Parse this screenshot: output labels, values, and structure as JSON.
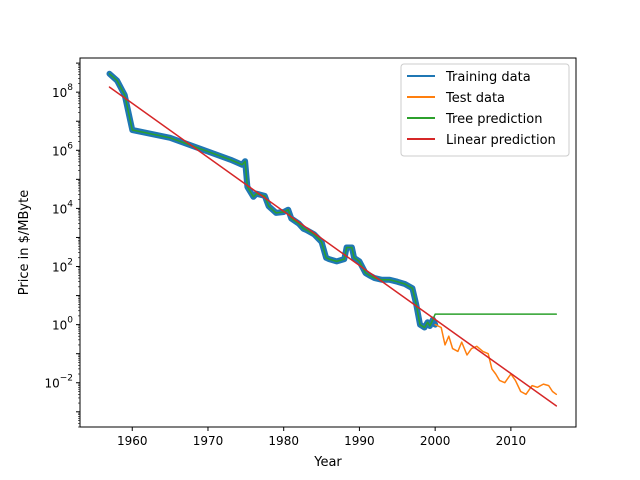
{
  "chart_data": {
    "type": "line",
    "xlabel": "Year",
    "ylabel": "Price in $/MByte",
    "xlim": [
      1953.1,
      2018.6
    ],
    "ylim": [
      0.0003,
      1500000000
    ],
    "yscale": "log",
    "grid": false,
    "legend_position": "top-right",
    "x_ticks": [
      1960,
      1970,
      1980,
      1990,
      2000,
      2010
    ],
    "y_ticks": [
      {
        "value": 0.01,
        "base": "10",
        "exp": "−2"
      },
      {
        "value": 1.0,
        "base": "10",
        "exp": "0"
      },
      {
        "value": 100.0,
        "base": "10",
        "exp": "2"
      },
      {
        "value": 10000.0,
        "base": "10",
        "exp": "4"
      },
      {
        "value": 1000000.0,
        "base": "10",
        "exp": "6"
      },
      {
        "value": 100000000.0,
        "base": "10",
        "exp": "8"
      }
    ],
    "series": [
      {
        "name": "Training data",
        "color": "#1f77b4",
        "points": [
          [
            1957,
            430000000
          ],
          [
            1958,
            250000000
          ],
          [
            1959,
            80000000
          ],
          [
            1960,
            5000000
          ],
          [
            1965,
            2700000
          ],
          [
            1970,
            900000
          ],
          [
            1973,
            470000
          ],
          [
            1974.5,
            320000
          ],
          [
            1974.9,
            420000
          ],
          [
            1975.2,
            55000
          ],
          [
            1976,
            25000
          ],
          [
            1976.4,
            32000
          ],
          [
            1977.5,
            27000
          ],
          [
            1978,
            12000
          ],
          [
            1979,
            7000
          ],
          [
            1980,
            7500
          ],
          [
            1980.6,
            9000
          ],
          [
            1981,
            4500
          ],
          [
            1982,
            3000
          ],
          [
            1982.6,
            2000
          ],
          [
            1983,
            1800
          ],
          [
            1984,
            1300
          ],
          [
            1985,
            700
          ],
          [
            1985.6,
            200
          ],
          [
            1986,
            180
          ],
          [
            1987,
            150
          ],
          [
            1988,
            180
          ],
          [
            1988.3,
            450
          ],
          [
            1989,
            450
          ],
          [
            1989.3,
            200
          ],
          [
            1990,
            150
          ],
          [
            1990.8,
            60
          ],
          [
            1991.3,
            50
          ],
          [
            1992,
            40
          ],
          [
            1993,
            35
          ],
          [
            1994,
            35
          ],
          [
            1995,
            30
          ],
          [
            1996,
            25
          ],
          [
            1997,
            18
          ],
          [
            1997.5,
            5
          ],
          [
            1998,
            1.0
          ],
          [
            1998.6,
            0.8
          ],
          [
            1999,
            1.2
          ],
          [
            1999.3,
            0.9
          ],
          [
            1999.7,
            1.5
          ],
          [
            2000,
            1.0
          ]
        ]
      },
      {
        "name": "Test data",
        "color": "#ff7f0e",
        "points": [
          [
            2000,
            1.0
          ],
          [
            2000.8,
            0.8
          ],
          [
            2001.3,
            0.2
          ],
          [
            2001.8,
            0.4
          ],
          [
            2002.3,
            0.15
          ],
          [
            2003,
            0.12
          ],
          [
            2003.5,
            0.25
          ],
          [
            2004.2,
            0.09
          ],
          [
            2004.8,
            0.15
          ],
          [
            2005.5,
            0.18
          ],
          [
            2006.3,
            0.12
          ],
          [
            2007,
            0.1
          ],
          [
            2007.5,
            0.03
          ],
          [
            2008,
            0.02
          ],
          [
            2008.5,
            0.012
          ],
          [
            2009.2,
            0.01
          ],
          [
            2010,
            0.02
          ],
          [
            2010.6,
            0.012
          ],
          [
            2011.3,
            0.005
          ],
          [
            2012,
            0.004
          ],
          [
            2012.8,
            0.008
          ],
          [
            2013.5,
            0.007
          ],
          [
            2014.3,
            0.009
          ],
          [
            2015,
            0.008
          ],
          [
            2015.5,
            0.005
          ],
          [
            2016,
            0.004
          ]
        ]
      },
      {
        "name": "Tree prediction",
        "color": "#2ca02c",
        "points": [
          [
            1957,
            430000000
          ],
          [
            1958,
            250000000
          ],
          [
            1959,
            80000000
          ],
          [
            1960,
            5000000
          ],
          [
            1965,
            2700000
          ],
          [
            1970,
            900000
          ],
          [
            1973,
            470000
          ],
          [
            1974.5,
            320000
          ],
          [
            1974.9,
            420000
          ],
          [
            1975.2,
            55000
          ],
          [
            1976,
            25000
          ],
          [
            1976.4,
            32000
          ],
          [
            1977.5,
            27000
          ],
          [
            1978,
            12000
          ],
          [
            1979,
            7000
          ],
          [
            1980,
            7500
          ],
          [
            1980.6,
            9000
          ],
          [
            1981,
            4500
          ],
          [
            1982,
            3000
          ],
          [
            1982.6,
            2000
          ],
          [
            1983,
            1800
          ],
          [
            1984,
            1300
          ],
          [
            1985,
            700
          ],
          [
            1985.6,
            200
          ],
          [
            1986,
            180
          ],
          [
            1987,
            150
          ],
          [
            1988,
            180
          ],
          [
            1988.3,
            450
          ],
          [
            1989,
            450
          ],
          [
            1989.3,
            200
          ],
          [
            1990,
            150
          ],
          [
            1990.8,
            60
          ],
          [
            1991.3,
            50
          ],
          [
            1992,
            40
          ],
          [
            1993,
            35
          ],
          [
            1994,
            35
          ],
          [
            1995,
            30
          ],
          [
            1996,
            25
          ],
          [
            1997,
            18
          ],
          [
            1997.5,
            5
          ],
          [
            1998,
            1.0
          ],
          [
            1998.6,
            0.8
          ],
          [
            1999,
            1.2
          ],
          [
            1999.3,
            0.9
          ],
          [
            1999.7,
            1.5
          ],
          [
            2000,
            2.3
          ],
          [
            2016,
            2.3
          ]
        ]
      },
      {
        "name": "Linear prediction",
        "color": "#d62728",
        "points": [
          [
            1957,
            150000000
          ],
          [
            2016,
            0.0016
          ]
        ]
      }
    ]
  }
}
